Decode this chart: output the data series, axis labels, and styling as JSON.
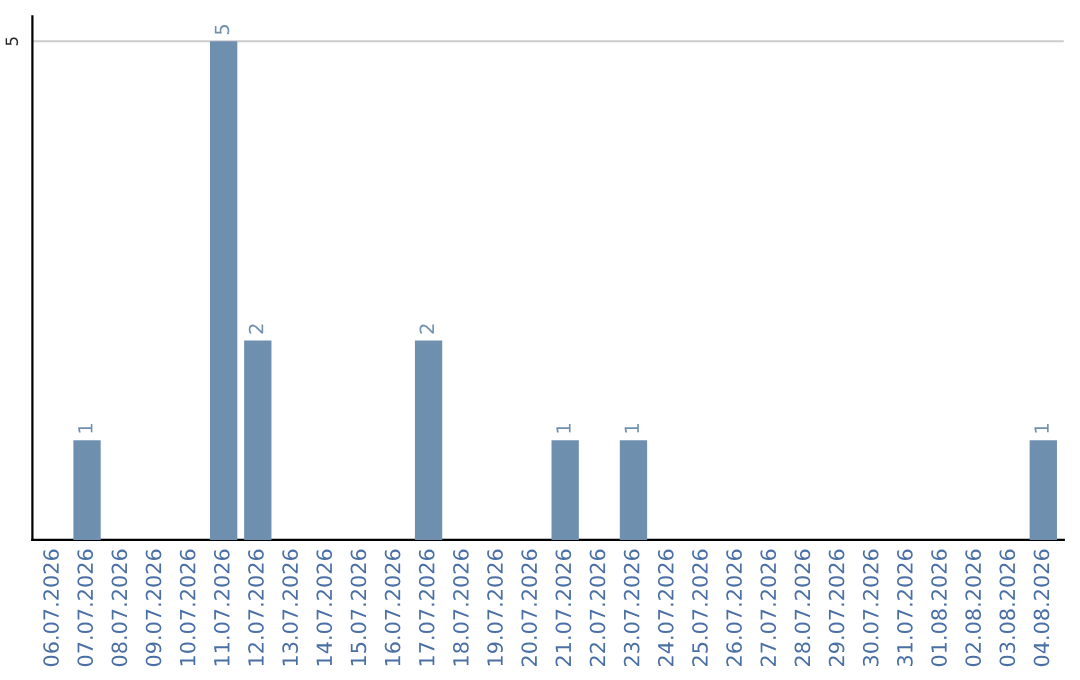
{
  "chart_data": {
    "type": "bar",
    "categories": [
      "06.07.2026",
      "07.07.2026",
      "08.07.2026",
      "09.07.2026",
      "10.07.2026",
      "11.07.2026",
      "12.07.2026",
      "13.07.2026",
      "14.07.2026",
      "15.07.2026",
      "16.07.2026",
      "17.07.2026",
      "18.07.2026",
      "19.07.2026",
      "20.07.2026",
      "21.07.2026",
      "22.07.2026",
      "23.07.2026",
      "24.07.2026",
      "25.07.2026",
      "26.07.2026",
      "27.07.2026",
      "28.07.2026",
      "29.07.2026",
      "30.07.2026",
      "31.07.2026",
      "01.08.2026",
      "02.08.2026",
      "03.08.2026",
      "04.08.2026"
    ],
    "values": [
      0,
      1,
      0,
      0,
      0,
      5,
      2,
      0,
      0,
      0,
      0,
      2,
      0,
      0,
      0,
      1,
      0,
      1,
      0,
      0,
      0,
      0,
      0,
      0,
      0,
      0,
      0,
      0,
      0,
      1
    ],
    "value_labels": [
      null,
      "1",
      null,
      null,
      null,
      "5",
      "2",
      null,
      null,
      null,
      null,
      "2",
      null,
      null,
      null,
      "1",
      null,
      "1",
      null,
      null,
      null,
      null,
      null,
      null,
      null,
      null,
      null,
      null,
      null,
      "1"
    ],
    "color": "#6f8faf",
    "ylim": [
      0,
      5.25
    ],
    "yticks": [
      5
    ],
    "grid": "y"
  }
}
